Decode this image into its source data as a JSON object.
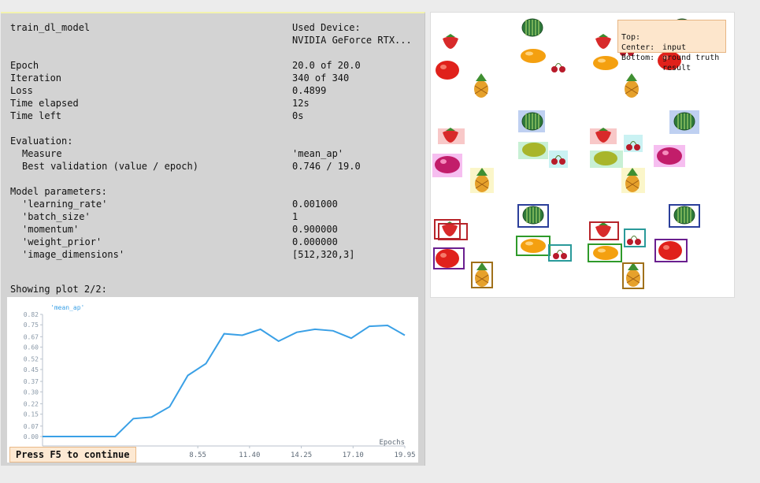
{
  "info": {
    "title": "train_dl_model",
    "device_label": "Used Device:",
    "device_value": "NVIDIA GeForce RTX...",
    "epoch_label": "Epoch",
    "epoch_value": "20.0 of 20.0",
    "iteration_label": "Iteration",
    "iteration_value": "340 of 340",
    "loss_label": "Loss",
    "loss_value": "0.4899",
    "elapsed_label": "Time elapsed",
    "elapsed_value": "12s",
    "left_label": "Time left",
    "left_value": "0s",
    "evaluation_label": "Evaluation:",
    "measure_label": "Measure",
    "measure_value": "'mean_ap'",
    "best_label": "Best validation (value / epoch)",
    "best_value": "0.746 / 19.0",
    "params_label": "Model parameters:",
    "params": [
      {
        "name": "'learning_rate'",
        "value": "0.001000"
      },
      {
        "name": "'batch_size'",
        "value": "1"
      },
      {
        "name": "'momentum'",
        "value": "0.900000"
      },
      {
        "name": "'weight_prior'",
        "value": "0.000000"
      },
      {
        "name": "'image_dimensions'",
        "value": "[512,320,3]"
      }
    ],
    "plot_caption": "Showing plot 2/2:",
    "continue_label": "Press F5 to continue"
  },
  "chart_data": {
    "type": "line",
    "xlabel": "Epochs",
    "ylim": [
      0,
      0.82
    ],
    "yticks": [
      "0.00",
      "0.07",
      "0.15",
      "0.22",
      "0.30",
      "0.37",
      "0.45",
      "0.52",
      "0.60",
      "0.67",
      "0.75",
      "0.82"
    ],
    "xticks": [
      "8.55",
      "11.40",
      "14.25",
      "17.10",
      "19.95"
    ],
    "xlim": [
      0,
      19.95
    ],
    "series": [
      {
        "name": "'mean_ap'",
        "color": "#3aa0e6",
        "x": [
          0,
          1,
          2,
          3,
          4,
          5,
          6,
          7,
          8,
          9,
          10,
          11,
          12,
          13,
          14,
          15,
          16,
          17,
          18,
          19,
          19.95
        ],
        "y": [
          0.0,
          0.0,
          0.0,
          0.0,
          0.0,
          0.12,
          0.13,
          0.2,
          0.41,
          0.49,
          0.69,
          0.68,
          0.72,
          0.64,
          0.7,
          0.72,
          0.71,
          0.66,
          0.74,
          0.746,
          0.68
        ]
      }
    ]
  },
  "image_window": {
    "legend": [
      {
        "key": "Top:",
        "value": "input"
      },
      {
        "key": "Center:",
        "value": "ground truth"
      },
      {
        "key": "Bottom:",
        "value": "result"
      }
    ]
  }
}
